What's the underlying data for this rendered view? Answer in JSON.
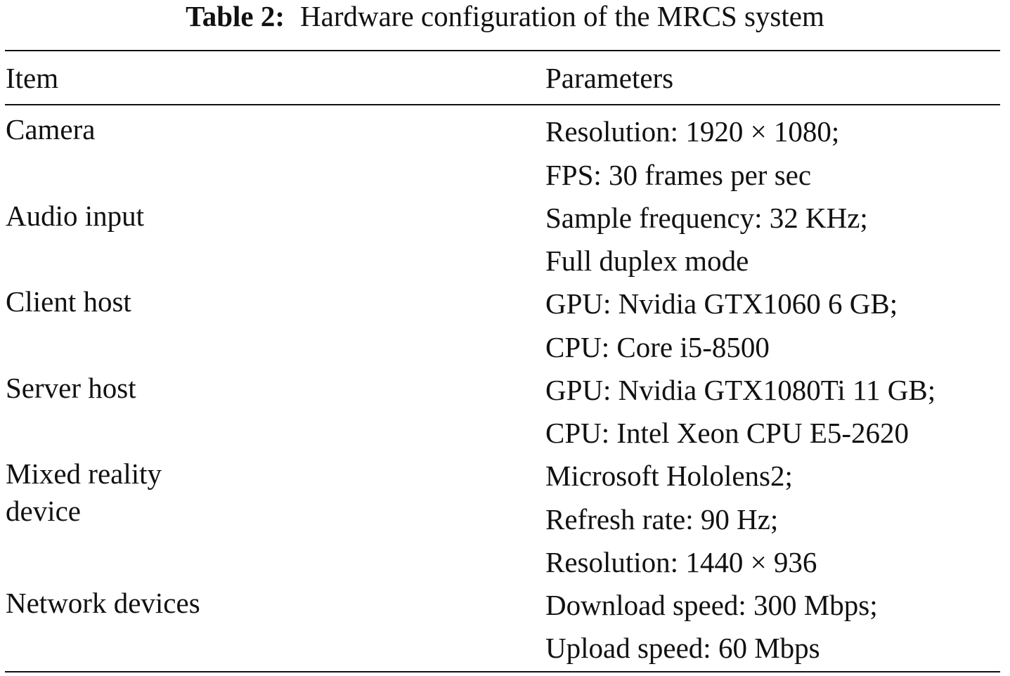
{
  "caption": {
    "label": "Table 2:",
    "text": "Hardware configuration of the MRCS system"
  },
  "table": {
    "headers": [
      "Item",
      "Parameters"
    ],
    "rows": [
      {
        "item": [
          "Camera"
        ],
        "params": [
          "Resolution: 1920 × 1080;",
          "FPS: 30 frames per sec"
        ]
      },
      {
        "item": [
          "Audio input"
        ],
        "params": [
          "Sample frequency: 32 KHz;",
          "Full duplex mode"
        ]
      },
      {
        "item": [
          "Client host"
        ],
        "params": [
          "GPU: Nvidia GTX1060 6 GB;",
          "CPU: Core i5-8500"
        ]
      },
      {
        "item": [
          "Server host"
        ],
        "params": [
          "GPU: Nvidia GTX1080Ti 11 GB;",
          "CPU: Intel Xeon CPU E5-2620"
        ]
      },
      {
        "item": [
          "Mixed reality",
          "device"
        ],
        "params": [
          "Microsoft Hololens2;",
          "Refresh rate: 90 Hz;",
          "Resolution: 1440 × 936"
        ]
      },
      {
        "item": [
          "Network devices"
        ],
        "params": [
          "Download speed: 300 Mbps;",
          "Upload speed: 60 Mbps"
        ]
      }
    ]
  }
}
